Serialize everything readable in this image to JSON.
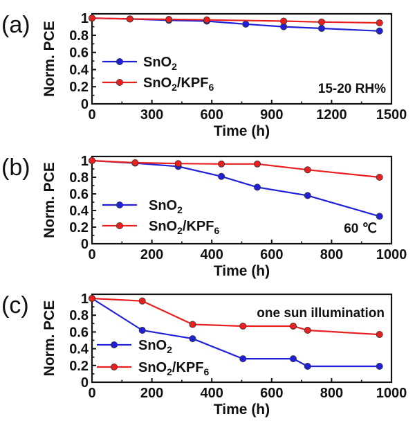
{
  "chart_data": [
    {
      "type": "line",
      "panel_label": "(a)",
      "xlabel": "Time (h)",
      "ylabel": "Norm. PCE",
      "xlim": [
        0,
        1500
      ],
      "ylim": [
        0,
        1.05
      ],
      "xticks": [
        0,
        300,
        600,
        900,
        1200,
        1500
      ],
      "xtick_labels": [
        "0",
        "300",
        "600",
        "900",
        "1200",
        "1500"
      ],
      "yticks": [
        0,
        0.2,
        0.4,
        0.6,
        0.8,
        1
      ],
      "ytick_labels": [
        "0",
        "0.2",
        "0.4",
        "0.6",
        "0.8",
        "1"
      ],
      "annotation": "15-20 RH%",
      "annotation_position": "bottom-right",
      "legend_position": "bottom-left",
      "series": [
        {
          "name": "SnO2",
          "legend_base": "SnO",
          "legend_sub": "2",
          "legend_tail": "",
          "legend_sub2": "",
          "color": "#2020d8",
          "x": [
            0,
            190,
            385,
            575,
            770,
            960,
            1150,
            1440
          ],
          "y": [
            1.0,
            0.99,
            0.975,
            0.965,
            0.93,
            0.9,
            0.88,
            0.85
          ]
        },
        {
          "name": "SnO2/KPF6",
          "legend_base": "SnO",
          "legend_sub": "2",
          "legend_tail": "/KPF",
          "legend_sub2": "6",
          "color": "#e82020",
          "x": [
            0,
            190,
            385,
            575,
            960,
            1150,
            1440
          ],
          "y": [
            1.0,
            0.99,
            0.985,
            0.98,
            0.965,
            0.955,
            0.945
          ]
        }
      ]
    },
    {
      "type": "line",
      "panel_label": "(b)",
      "xlabel": "Time (h)",
      "ylabel": "Norm. PCE",
      "xlim": [
        0,
        1000
      ],
      "ylim": [
        0,
        1.05
      ],
      "xticks": [
        0,
        200,
        400,
        600,
        800,
        1000
      ],
      "xtick_labels": [
        "0",
        "200",
        "400",
        "600",
        "800",
        "1000"
      ],
      "yticks": [
        0,
        0.2,
        0.4,
        0.6,
        0.8,
        1
      ],
      "ytick_labels": [
        "0",
        "0.2",
        "0.4",
        "0.6",
        "0.8",
        "1"
      ],
      "annotation": "60 ℃",
      "annotation_position": "bottom-right",
      "legend_position": "bottom-left",
      "series": [
        {
          "name": "SnO2",
          "legend_base": "SnO",
          "legend_sub": "2",
          "legend_tail": "",
          "legend_sub2": "",
          "color": "#2020d8",
          "x": [
            0,
            144,
            288,
            432,
            552,
            720,
            960
          ],
          "y": [
            1.0,
            0.97,
            0.93,
            0.81,
            0.68,
            0.58,
            0.33
          ]
        },
        {
          "name": "SnO2/KPF6",
          "legend_base": "SnO",
          "legend_sub": "2",
          "legend_tail": "/KPF",
          "legend_sub2": "6",
          "color": "#e82020",
          "x": [
            0,
            144,
            288,
            432,
            552,
            720,
            960
          ],
          "y": [
            1.0,
            0.975,
            0.965,
            0.96,
            0.96,
            0.89,
            0.8
          ]
        }
      ]
    },
    {
      "type": "line",
      "panel_label": "(c)",
      "xlabel": "Time (h)",
      "ylabel": "Norm. PCE",
      "xlim": [
        0,
        1000
      ],
      "ylim": [
        0,
        1.05
      ],
      "xticks": [
        0,
        200,
        400,
        600,
        800,
        1000
      ],
      "xtick_labels": [
        "0",
        "200",
        "400",
        "600",
        "800",
        "1000"
      ],
      "yticks": [
        0,
        0.2,
        0.4,
        0.6,
        0.8,
        1
      ],
      "ytick_labels": [
        "0",
        "0.2",
        "0.4",
        "0.6",
        "0.8",
        "1"
      ],
      "annotation": "one sun illumination",
      "annotation_position": "top-right",
      "legend_position": "bottom-left",
      "series": [
        {
          "name": "SnO2",
          "legend_base": "SnO",
          "legend_sub": "2",
          "legend_tail": "",
          "legend_sub2": "",
          "color": "#2020d8",
          "x": [
            0,
            168,
            336,
            504,
            672,
            720,
            960
          ],
          "y": [
            1.0,
            0.62,
            0.52,
            0.28,
            0.28,
            0.19,
            0.19
          ]
        },
        {
          "name": "SnO2/KPF6",
          "legend_base": "SnO",
          "legend_sub": "2",
          "legend_tail": "/KPF",
          "legend_sub2": "6",
          "color": "#e82020",
          "x": [
            0,
            168,
            336,
            504,
            672,
            720,
            960
          ],
          "y": [
            1.0,
            0.97,
            0.69,
            0.67,
            0.67,
            0.62,
            0.57
          ]
        }
      ]
    }
  ]
}
